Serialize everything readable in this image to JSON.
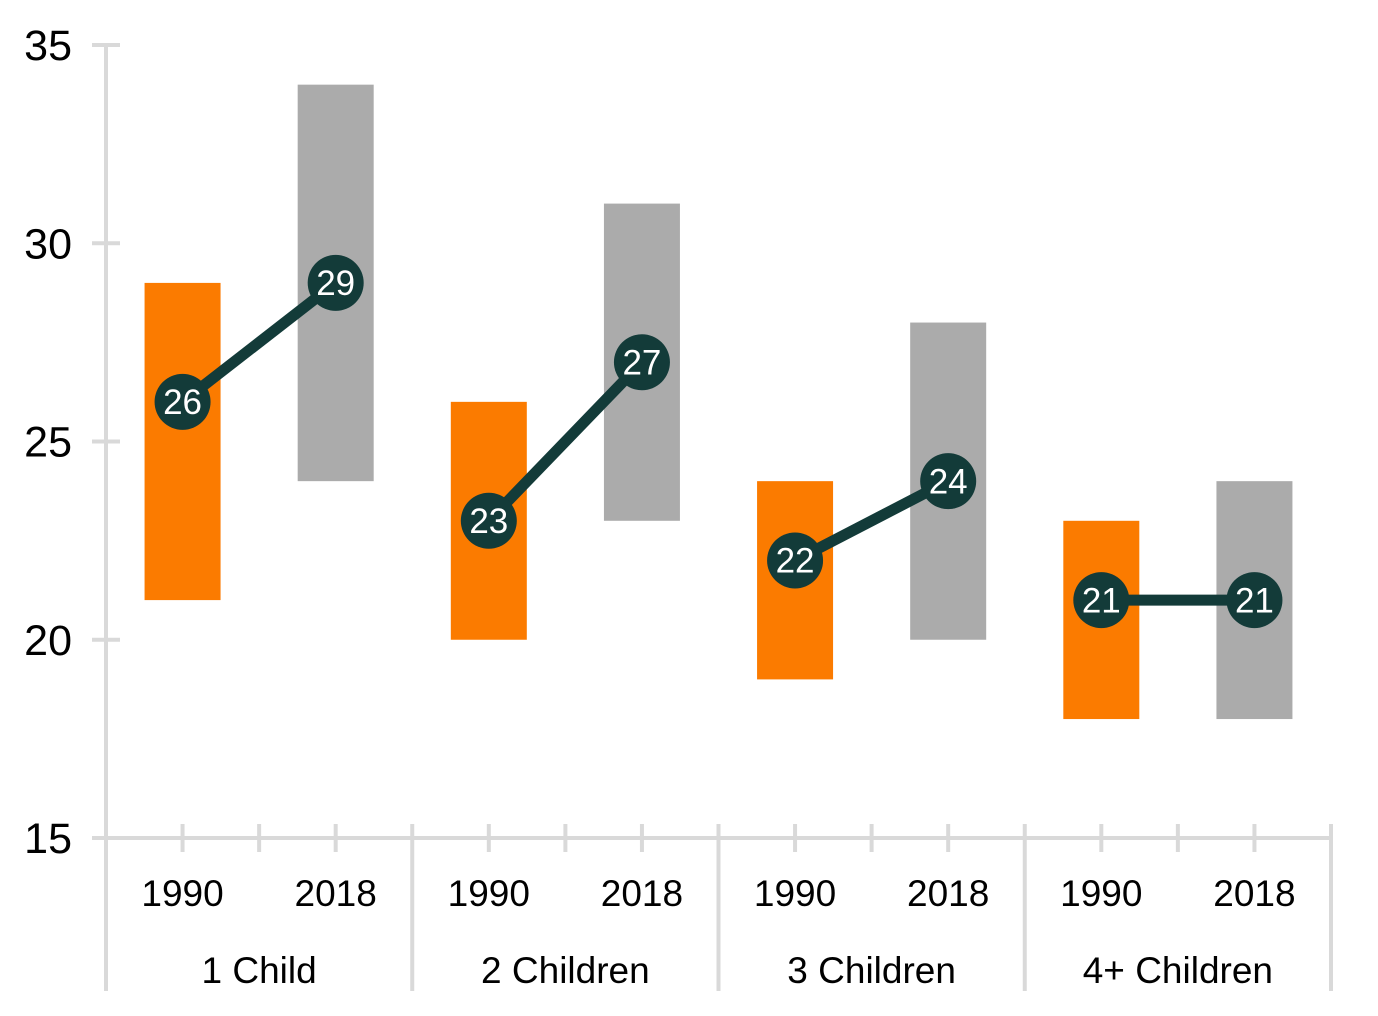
{
  "chart_data": {
    "type": "bar",
    "subtype": "floating_range_bars_with_median_markers",
    "title": "",
    "xlabel": "",
    "ylabel": "",
    "ylim": [
      15,
      35
    ],
    "yticks": [
      35,
      30,
      25,
      20,
      15
    ],
    "grid": false,
    "legend": "none",
    "year_categories": [
      "1990",
      "2018"
    ],
    "groups": [
      {
        "label": "1 Child",
        "bars": [
          {
            "year": "1990",
            "low": 21,
            "high": 29,
            "median": 26
          },
          {
            "year": "2018",
            "low": 24,
            "high": 34,
            "median": 29
          }
        ]
      },
      {
        "label": "2 Children",
        "bars": [
          {
            "year": "1990",
            "low": 20,
            "high": 26,
            "median": 23
          },
          {
            "year": "2018",
            "low": 23,
            "high": 31,
            "median": 27
          }
        ]
      },
      {
        "label": "3 Children",
        "bars": [
          {
            "year": "1990",
            "low": 19,
            "high": 24,
            "median": 22
          },
          {
            "year": "2018",
            "low": 20,
            "high": 28,
            "median": 24
          }
        ]
      },
      {
        "label": "4+ Children",
        "bars": [
          {
            "year": "1990",
            "low": 18,
            "high": 23,
            "median": 21
          },
          {
            "year": "2018",
            "low": 18,
            "high": 24,
            "median": 21
          }
        ]
      }
    ],
    "colors": {
      "bar_1990": "#FB7B00",
      "bar_2018": "#ABABAB",
      "marker_fill": "#133B39",
      "marker_text": "#FFFFFF",
      "connector": "#133B39",
      "axis_line": "#D9D9D9",
      "label_text": "#000000"
    }
  }
}
